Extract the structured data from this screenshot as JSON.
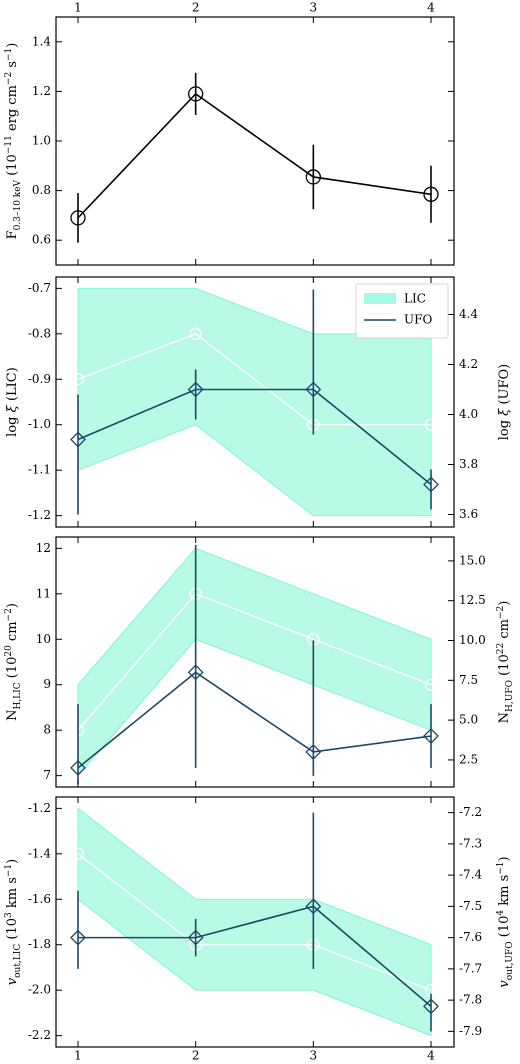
{
  "chart_data": [
    {
      "type": "line",
      "x": [
        1,
        2,
        3,
        4
      ],
      "top_ticks": [
        "1",
        "2",
        "3",
        "4"
      ],
      "ylabel_left": "F0.3–10 keV (10−11 erg cm−2 s−1)",
      "ylim_left": [
        0.5,
        1.5
      ],
      "yticks_left": [
        "0.6",
        "0.8",
        "1.0",
        "1.2",
        "1.4"
      ],
      "series": [
        {
          "values": [
            0.69,
            1.19,
            0.855,
            0.785
          ],
          "err": [
            0.1,
            0.085,
            0.13,
            0.115
          ],
          "color": "#000000",
          "marker": "circle"
        }
      ]
    },
    {
      "type": "line",
      "x": [
        1,
        2,
        3,
        4
      ],
      "ylabel_left": "log ξ (LIC)",
      "ylabel_right": "log ξ (UFO)",
      "ylim_left": [
        -1.225,
        -0.675
      ],
      "ylim_right": [
        3.55,
        4.55
      ],
      "yticks_left": [
        "-1.2",
        "-1.1",
        "-1.0",
        "-0.9",
        "-0.8",
        "-0.7"
      ],
      "yticks_right": [
        "3.6",
        "3.8",
        "4.0",
        "4.2",
        "4.4"
      ],
      "legend": {
        "position": "top-right",
        "entries": [
          "LIC",
          "UFO"
        ]
      },
      "series": [
        {
          "name": "LIC",
          "axis": "left",
          "values": [
            -0.9,
            -0.8,
            -1.0,
            -1.0
          ],
          "band_low": [
            -1.1,
            -1.0,
            -1.2,
            -1.2
          ],
          "band_high": [
            -0.7,
            -0.7,
            -0.8,
            -0.8
          ],
          "color": "#7ff5d4",
          "marker": "circle"
        },
        {
          "name": "UFO",
          "axis": "right",
          "values": [
            3.9,
            4.1,
            4.1,
            3.72
          ],
          "err_low": [
            3.6,
            3.98,
            3.92,
            3.62
          ],
          "err_high": [
            4.08,
            4.18,
            4.5,
            3.78
          ],
          "color": "#1c4766",
          "marker": "diamond"
        }
      ]
    },
    {
      "type": "line",
      "x": [
        1,
        2,
        3,
        4
      ],
      "ylabel_left": "NH,LIC (1020 cm−2)",
      "ylabel_right": "NH,UFO (1022 cm−2)",
      "ylim_left": [
        6.75,
        12.25
      ],
      "ylim_right": [
        0.8,
        16.5
      ],
      "yticks_left": [
        "7",
        "8",
        "9",
        "10",
        "11",
        "12"
      ],
      "yticks_right": [
        "2.5",
        "5.0",
        "7.5",
        "10.0",
        "12.5",
        "15.0"
      ],
      "series": [
        {
          "name": "LIC",
          "axis": "left",
          "values": [
            8.0,
            11.0,
            10.0,
            9.0
          ],
          "band_low": [
            7.0,
            10.0,
            9.0,
            8.0
          ],
          "band_high": [
            9.0,
            12.0,
            11.0,
            10.0
          ],
          "color": "#7ff5d4",
          "marker": "circle"
        },
        {
          "name": "UFO",
          "axis": "right",
          "values": [
            2.0,
            8.0,
            3.0,
            4.0
          ],
          "err_low": [
            1.0,
            2.0,
            1.5,
            2.0
          ],
          "err_high": [
            6.0,
            16.0,
            10.0,
            6.0
          ],
          "color": "#1c4766",
          "marker": "diamond"
        }
      ]
    },
    {
      "type": "line",
      "x": [
        1,
        2,
        3,
        4
      ],
      "ylabel_left": "vout,LIC (103 km s−1)",
      "ylabel_right": "vout,UFO (104 km s−1)",
      "ylim_left": [
        -2.25,
        -1.15
      ],
      "ylim_right": [
        -7.95,
        -7.15
      ],
      "yticks_left": [
        "-2.2",
        "-2.0",
        "-1.8",
        "-1.6",
        "-1.4",
        "-1.2"
      ],
      "yticks_right": [
        "-7.9",
        "-7.8",
        "-7.7",
        "-7.6",
        "-7.5",
        "-7.4",
        "-7.3",
        "-7.2"
      ],
      "bottom_ticks": [
        "1",
        "2",
        "3",
        "4"
      ],
      "series": [
        {
          "name": "LIC",
          "axis": "left",
          "values": [
            -1.4,
            -1.8,
            -1.8,
            -2.0
          ],
          "band_low": [
            -1.6,
            -2.0,
            -2.0,
            -2.2
          ],
          "band_high": [
            -1.2,
            -1.6,
            -1.6,
            -1.8
          ],
          "color": "#7ff5d4",
          "marker": "circle"
        },
        {
          "name": "UFO",
          "axis": "right",
          "values": [
            -7.6,
            -7.6,
            -7.5,
            -7.82
          ],
          "err_low": [
            -7.7,
            -7.66,
            -7.7,
            -7.9
          ],
          "err_high": [
            -7.45,
            -7.54,
            -7.2,
            -7.78
          ],
          "color": "#1c4766",
          "marker": "diamond"
        }
      ]
    }
  ]
}
